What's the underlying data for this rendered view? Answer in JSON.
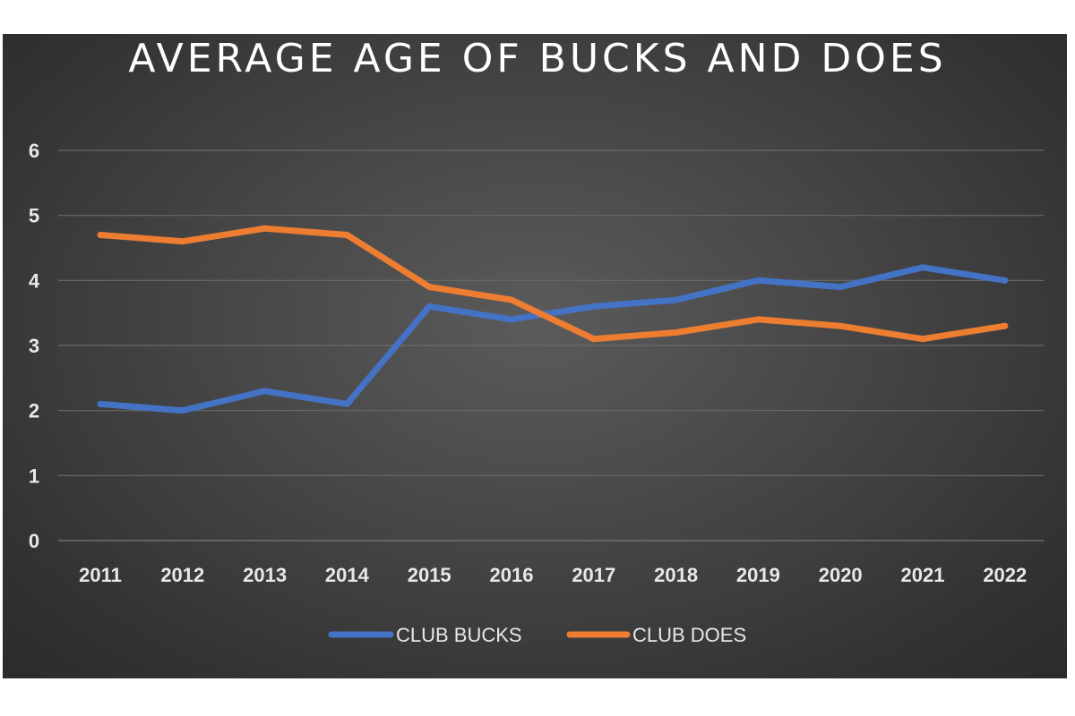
{
  "chart_data": {
    "type": "line",
    "title": "AVERAGE AGE OF BUCKS AND DOES",
    "xlabel": "",
    "ylabel": "",
    "categories": [
      "2011",
      "2012",
      "2013",
      "2014",
      "2015",
      "2016",
      "2017",
      "2018",
      "2019",
      "2020",
      "2021",
      "2022"
    ],
    "ylim": [
      0,
      6
    ],
    "yticks": [
      0,
      1,
      2,
      3,
      4,
      5,
      6
    ],
    "grid": "horizontal",
    "legend_position": "bottom",
    "series": [
      {
        "name": "CLUB BUCKS",
        "color": "#4472c4",
        "values": [
          2.1,
          2.0,
          2.3,
          2.1,
          3.6,
          3.4,
          3.6,
          3.7,
          4.0,
          3.9,
          4.2,
          4.0
        ]
      },
      {
        "name": "CLUB DOES",
        "color": "#ed7d31",
        "values": [
          4.7,
          4.6,
          4.8,
          4.7,
          3.9,
          3.7,
          3.1,
          3.2,
          3.4,
          3.3,
          3.1,
          3.3
        ]
      }
    ]
  }
}
